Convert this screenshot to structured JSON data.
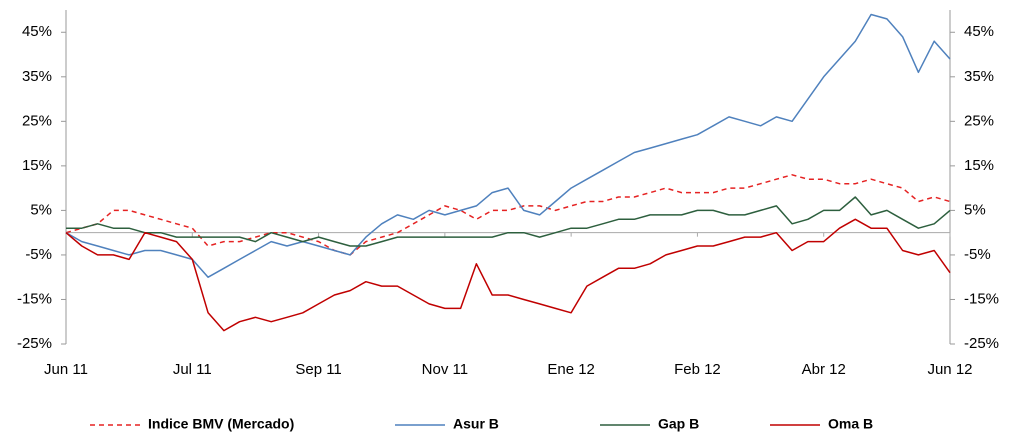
{
  "chart_data": {
    "type": "line",
    "categories": [
      "Jun 11",
      null,
      null,
      null,
      null,
      null,
      null,
      null,
      "Jul 11",
      null,
      null,
      null,
      null,
      null,
      null,
      null,
      "Sep 11",
      null,
      null,
      null,
      null,
      null,
      null,
      null,
      "Nov 11",
      null,
      null,
      null,
      null,
      null,
      null,
      null,
      "Ene 12",
      null,
      null,
      null,
      null,
      null,
      null,
      null,
      "Feb 12",
      null,
      null,
      null,
      null,
      null,
      null,
      null,
      "Abr 12",
      null,
      null,
      null,
      null,
      null,
      null,
      null,
      "Jun 12"
    ],
    "ylim": [
      -25,
      50
    ],
    "yticks": [
      {
        "value": -25,
        "label": "-25%"
      },
      {
        "value": -15,
        "label": "-15%"
      },
      {
        "value": -5,
        "label": "-5%"
      },
      {
        "value": 5,
        "label": "5%"
      },
      {
        "value": 15,
        "label": "15%"
      },
      {
        "value": 25,
        "label": "25%"
      },
      {
        "value": 35,
        "label": "35%"
      },
      {
        "value": 45,
        "label": "45%"
      }
    ],
    "y2lim": [
      -25,
      50
    ],
    "y2ticks": [
      {
        "value": -25,
        "label": "-25%"
      },
      {
        "value": -15,
        "label": "-15%"
      },
      {
        "value": -5,
        "label": "-5%"
      },
      {
        "value": 5,
        "label": "5%"
      },
      {
        "value": 15,
        "label": "15%"
      },
      {
        "value": 25,
        "label": "25%"
      },
      {
        "value": 35,
        "label": "35%"
      },
      {
        "value": 45,
        "label": "45%"
      }
    ],
    "legend": "bottom",
    "series": [
      {
        "name": "Indice BMV (Mercado)",
        "color": "#e52222",
        "dashed": true,
        "values": [
          0,
          1,
          2,
          5,
          5,
          4,
          3,
          2,
          1,
          -3,
          -2,
          -2,
          -1,
          0,
          0,
          -1,
          -2,
          -4,
          -5,
          -2,
          -1,
          0,
          2,
          4,
          6,
          5,
          3,
          5,
          5,
          6,
          6,
          5,
          6,
          7,
          7,
          8,
          8,
          9,
          10,
          9,
          9,
          9,
          10,
          10,
          11,
          12,
          13,
          12,
          12,
          11,
          11,
          12,
          11,
          10,
          7,
          8,
          7
        ]
      },
      {
        "name": "Asur B",
        "color": "#4f81bd",
        "values": [
          0,
          -2,
          -3,
          -4,
          -5,
          -4,
          -4,
          -5,
          -6,
          -10,
          -8,
          -6,
          -4,
          -2,
          -3,
          -2,
          -3,
          -4,
          -5,
          -1,
          2,
          4,
          3,
          5,
          4,
          5,
          6,
          9,
          10,
          5,
          4,
          7,
          10,
          12,
          14,
          16,
          18,
          19,
          20,
          21,
          22,
          24,
          26,
          25,
          24,
          26,
          25,
          30,
          35,
          39,
          43,
          49,
          48,
          44,
          36,
          43,
          39
        ]
      },
      {
        "name": "Gap B",
        "color": "#2d5f3e",
        "values": [
          1,
          1,
          2,
          1,
          1,
          0,
          0,
          -1,
          -1,
          -1,
          -1,
          -1,
          -2,
          0,
          -1,
          -2,
          -1,
          -2,
          -3,
          -3,
          -2,
          -1,
          -1,
          -1,
          -1,
          -1,
          -1,
          -1,
          0,
          0,
          -1,
          0,
          1,
          1,
          2,
          3,
          3,
          4,
          4,
          4,
          5,
          5,
          4,
          4,
          5,
          6,
          2,
          3,
          5,
          5,
          8,
          4,
          5,
          3,
          1,
          2,
          5
        ]
      },
      {
        "name": "Oma B",
        "color": "#c00000",
        "values": [
          0,
          -3,
          -5,
          -5,
          -6,
          0,
          -1,
          -2,
          -6,
          -18,
          -22,
          -20,
          -19,
          -20,
          -19,
          -18,
          -16,
          -14,
          -13,
          -11,
          -12,
          -12,
          -14,
          -16,
          -17,
          -17,
          -7,
          -14,
          -14,
          -15,
          -16,
          -17,
          -18,
          -12,
          -10,
          -8,
          -8,
          -7,
          -5,
          -4,
          -3,
          -3,
          -2,
          -1,
          -1,
          0,
          -4,
          -2,
          -2,
          1,
          3,
          1,
          1,
          -4,
          -5,
          -4,
          -9
        ]
      }
    ]
  }
}
